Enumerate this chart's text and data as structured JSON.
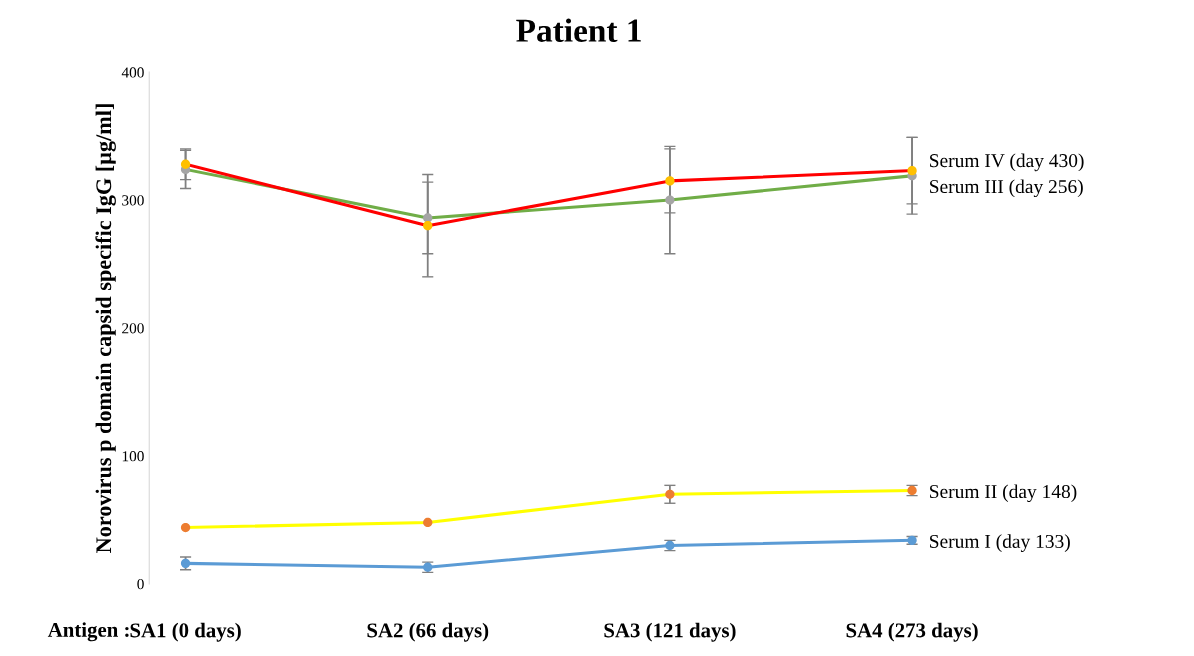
{
  "chart_data": {
    "type": "line",
    "title": "Patient 1",
    "ylabel": "Norovirus p domain capsid specific IgG [µg/ml]",
    "xlabel": "Antigen :",
    "categories": [
      "SA1 (0 days)",
      "SA2 (66 days)",
      "SA3 (121 days)",
      "SA4 (273 days)"
    ],
    "ylim": [
      0,
      400
    ],
    "yticks": [
      0,
      100,
      200,
      300,
      400
    ],
    "grid": false,
    "legend": false,
    "marker": "circle",
    "line_style": "solid",
    "series": [
      {
        "name": "Serum I (day 133)",
        "color": "#5b9bd5",
        "colors": [
          "#5b9bd5",
          "#5b9bd5",
          "#5b9bd5",
          "#5b9bd5"
        ],
        "values": [
          16,
          13,
          30,
          34
        ],
        "errors": [
          5,
          4,
          4,
          3
        ]
      },
      {
        "name": "Serum II (day 148)",
        "color": "#ffff00",
        "colors": [
          "#ed7d31",
          "#ed7d31",
          "#ed7d31",
          "#ed7d31"
        ],
        "values": [
          44,
          48,
          70,
          73
        ],
        "errors": [
          null,
          null,
          7,
          4
        ]
      },
      {
        "name": "Serum III (day 256)",
        "color": "#70ad47",
        "colors": [
          "#a5a5a5",
          "#a5a5a5",
          "#a5a5a5",
          "#a5a5a5"
        ],
        "values": [
          324,
          286,
          300,
          319
        ],
        "errors": [
          15,
          28,
          42,
          30
        ]
      },
      {
        "name": "Serum IV (day 430)",
        "color": "#ff0000",
        "colors": [
          "#ffc000",
          "#ffc000",
          "#ffc000",
          "#ffc000"
        ],
        "values": [
          328,
          280,
          315,
          323
        ],
        "errors": [
          12,
          40,
          25,
          26
        ]
      }
    ]
  }
}
